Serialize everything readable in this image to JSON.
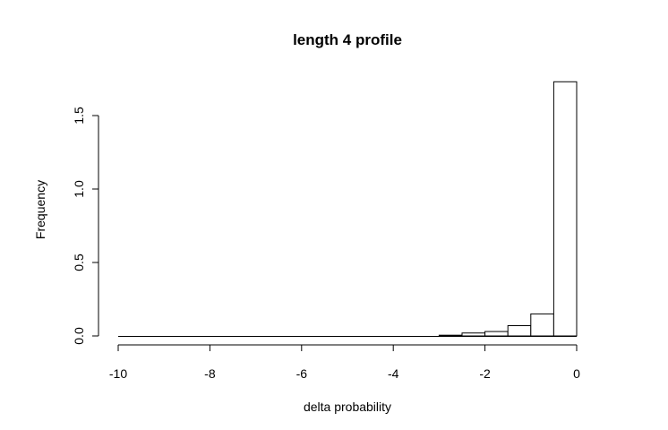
{
  "chart_data": {
    "type": "bar",
    "title": "length 4 profile",
    "xlabel": "delta probability",
    "ylabel": "Frequency",
    "xlim": [
      -10,
      0
    ],
    "ylim": [
      0,
      1.75
    ],
    "xticks": [
      "-10",
      "-8",
      "-6",
      "-4",
      "-2",
      "0"
    ],
    "yticks": [
      "0.0",
      "0.5",
      "1.0",
      "1.5"
    ],
    "bins": [
      {
        "x0": -10.0,
        "x1": -9.5,
        "value": 0.0
      },
      {
        "x0": -9.5,
        "x1": -9.0,
        "value": 0.0
      },
      {
        "x0": -9.0,
        "x1": -8.5,
        "value": 0.0
      },
      {
        "x0": -8.5,
        "x1": -8.0,
        "value": 0.0
      },
      {
        "x0": -8.0,
        "x1": -7.5,
        "value": 0.0
      },
      {
        "x0": -7.5,
        "x1": -7.0,
        "value": 0.0
      },
      {
        "x0": -7.0,
        "x1": -6.5,
        "value": 0.0
      },
      {
        "x0": -6.5,
        "x1": -6.0,
        "value": 0.0
      },
      {
        "x0": -6.0,
        "x1": -5.5,
        "value": 0.0
      },
      {
        "x0": -5.5,
        "x1": -5.0,
        "value": 0.0
      },
      {
        "x0": -5.0,
        "x1": -4.5,
        "value": 0.0
      },
      {
        "x0": -4.5,
        "x1": -4.0,
        "value": 0.0
      },
      {
        "x0": -4.0,
        "x1": -3.5,
        "value": 0.0
      },
      {
        "x0": -3.5,
        "x1": -3.0,
        "value": 0.0
      },
      {
        "x0": -3.0,
        "x1": -2.5,
        "value": 0.005
      },
      {
        "x0": -2.5,
        "x1": -2.0,
        "value": 0.02
      },
      {
        "x0": -2.0,
        "x1": -1.5,
        "value": 0.03
      },
      {
        "x0": -1.5,
        "x1": -1.0,
        "value": 0.07
      },
      {
        "x0": -1.0,
        "x1": -0.5,
        "value": 0.15
      },
      {
        "x0": -0.5,
        "x1": 0.0,
        "value": 1.73
      }
    ]
  }
}
